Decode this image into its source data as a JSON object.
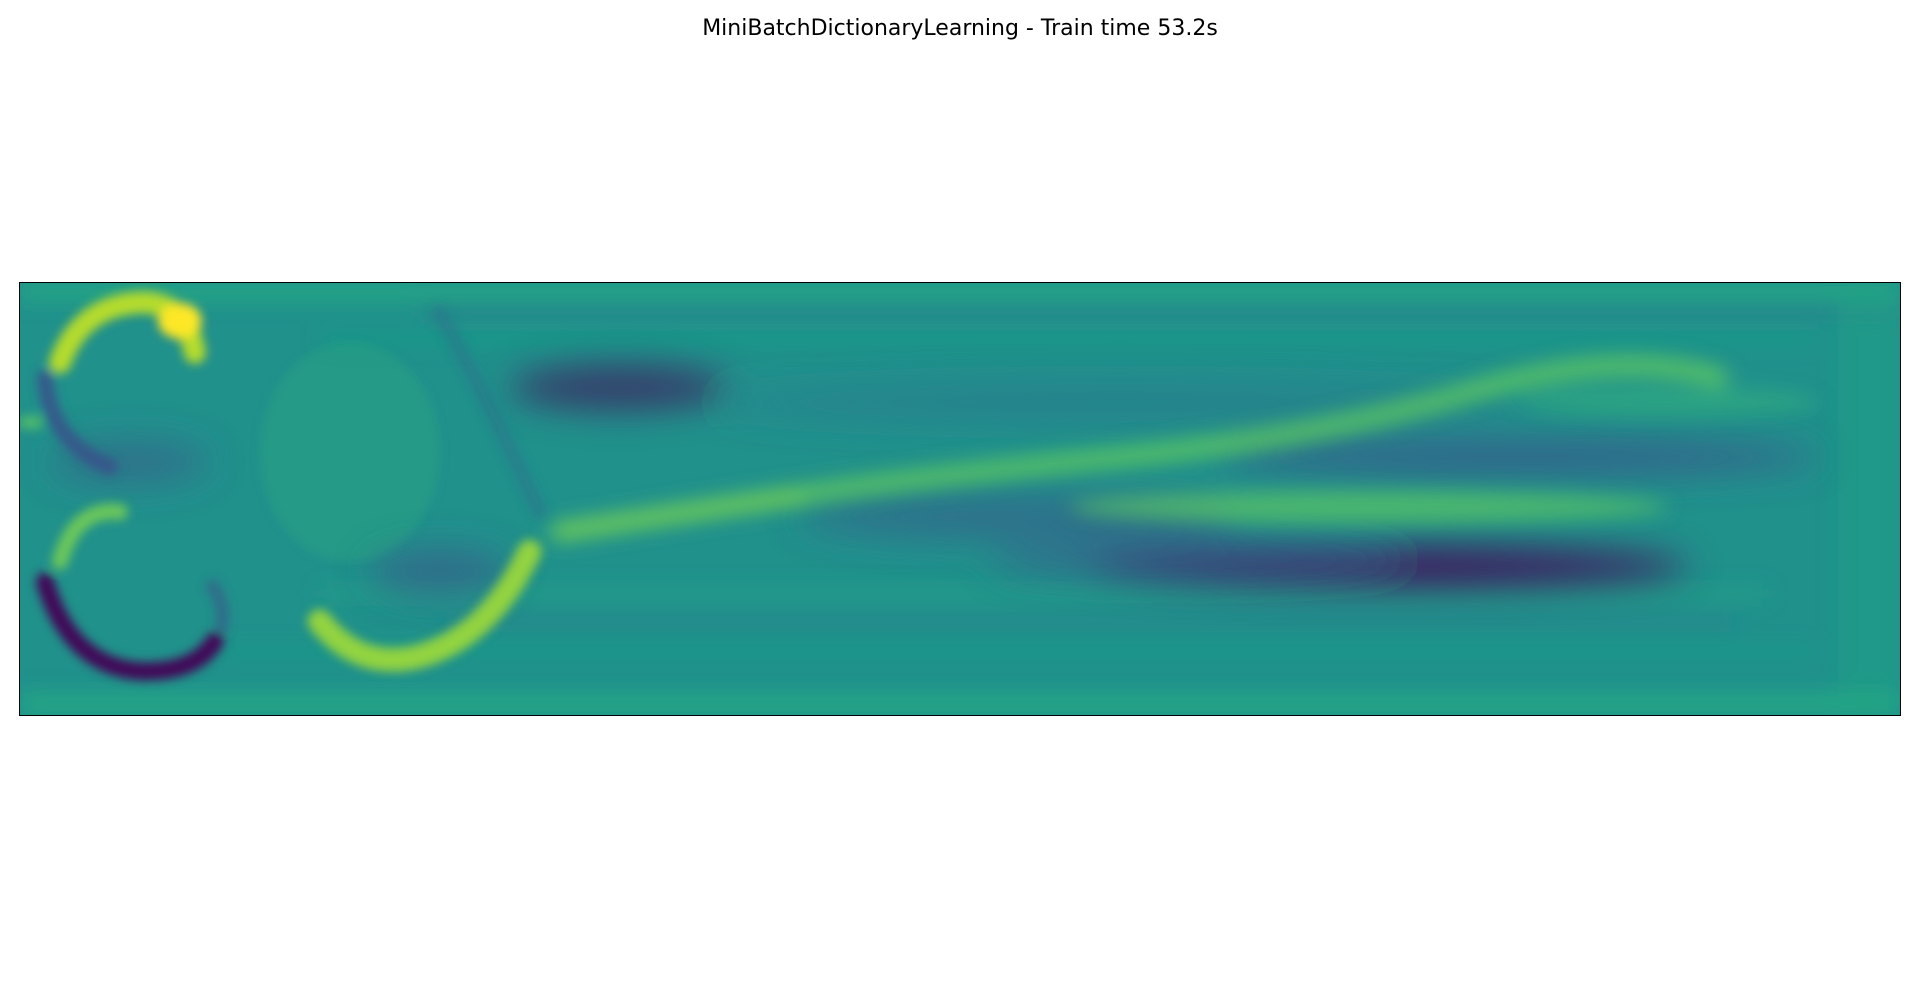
{
  "title": "MiniBatchDictionaryLearning - Train time 53.2s",
  "image": {
    "colormap": "viridis",
    "background_color": "#21918c",
    "axes_ticks": "none"
  }
}
